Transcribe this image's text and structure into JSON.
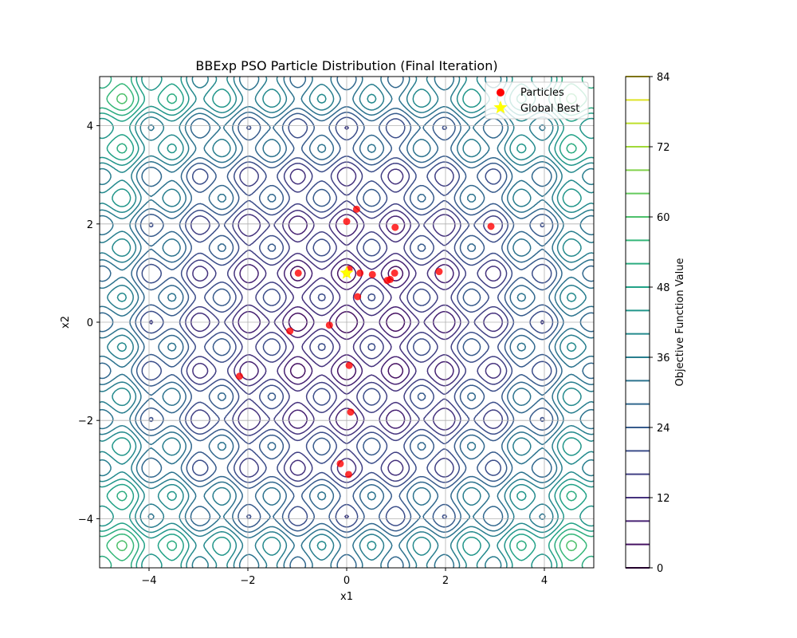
{
  "chart_data": {
    "type": "scatter",
    "title": "BBExp PSO Particle Distribution (Final Iteration)",
    "xlabel": "x1",
    "ylabel": "x2",
    "xlim": [
      -5,
      5
    ],
    "ylim": [
      -5,
      5
    ],
    "x_ticks": [
      -4,
      -2,
      0,
      2,
      4
    ],
    "y_ticks": [
      -4,
      -2,
      0,
      2,
      4
    ],
    "x_tick_labels": [
      "−4",
      "−2",
      "0",
      "2",
      "4"
    ],
    "y_tick_labels": [
      "−4",
      "−2",
      "0",
      "2",
      "4"
    ],
    "grid": true,
    "legend_position": "top-right",
    "background": "contour plot of the objective function (viridis colormap)",
    "contour_min_color": "#440154",
    "contour_max_color": "#fde725",
    "series": [
      {
        "name": "Particles",
        "marker": "circle",
        "color": "#ff0000",
        "points": [
          [
            0.0,
            2.05
          ],
          [
            0.2,
            2.3
          ],
          [
            0.98,
            1.93
          ],
          [
            2.92,
            1.95
          ],
          [
            -0.98,
            1.0
          ],
          [
            0.0,
            1.0
          ],
          [
            0.05,
            1.08
          ],
          [
            0.27,
            1.0
          ],
          [
            0.52,
            0.97
          ],
          [
            0.97,
            1.0
          ],
          [
            0.88,
            0.87
          ],
          [
            0.82,
            0.85
          ],
          [
            1.87,
            1.03
          ],
          [
            0.22,
            0.52
          ],
          [
            -0.35,
            -0.06
          ],
          [
            -1.15,
            -0.18
          ],
          [
            0.05,
            -0.88
          ],
          [
            -2.17,
            -1.1
          ],
          [
            0.08,
            -1.83
          ],
          [
            -0.13,
            -2.88
          ],
          [
            0.04,
            -3.1
          ]
        ]
      },
      {
        "name": "Global Best",
        "marker": "star",
        "color": "#ffff00",
        "points": [
          [
            0.0,
            1.0
          ]
        ]
      }
    ],
    "colorbar": {
      "label": "Objective Function Value",
      "min": 0,
      "max": 84,
      "ticks": [
        0,
        12,
        24,
        36,
        48,
        60,
        72,
        84
      ],
      "level_step": 4
    }
  }
}
